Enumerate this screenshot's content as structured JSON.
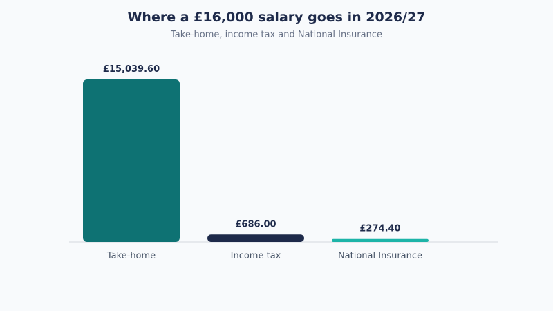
{
  "chart_data": {
    "type": "bar",
    "title": "Where a £16,000 salary goes in 2026/27",
    "subtitle": "Take-home, income tax and National Insurance",
    "categories": [
      "Take-home",
      "Income tax",
      "National Insurance"
    ],
    "values": [
      15039.6,
      686.0,
      274.4
    ],
    "value_labels": [
      "£15,039.60",
      "£686.00",
      "£274.40"
    ],
    "colors": [
      "#0e7273",
      "#1e2a4a",
      "#1db4a8"
    ],
    "ylim": [
      0,
      15039.6
    ],
    "grid": false,
    "legend": "none",
    "xlabel": "",
    "ylabel": ""
  }
}
